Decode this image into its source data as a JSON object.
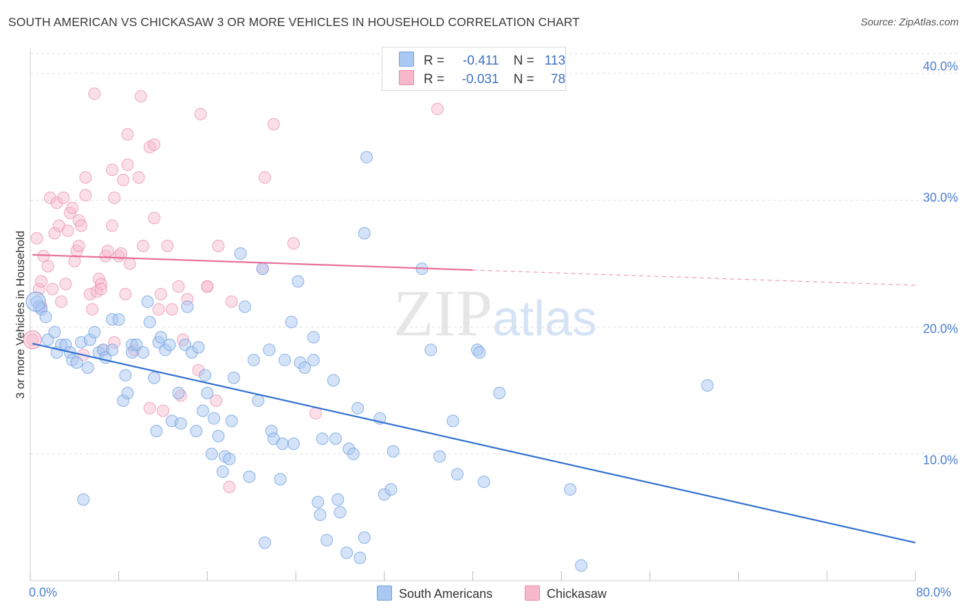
{
  "title": "SOUTH AMERICAN VS CHICKASAW 3 OR MORE VEHICLES IN HOUSEHOLD CORRELATION CHART",
  "source": "Source: ZipAtlas.com",
  "watermark": "ZIPatlas",
  "legend": {
    "rows": [
      {
        "r_label": "R =",
        "r_value": "-0.411",
        "n_label": "N =",
        "n_value": "113",
        "color": "#a9c8f2"
      },
      {
        "r_label": "R =",
        "r_value": "-0.031",
        "n_label": "N =",
        "n_value": "78",
        "color": "#f7b8cb"
      }
    ]
  },
  "bottom_legend": [
    {
      "label": "South Americans",
      "color": "#a9c8f2"
    },
    {
      "label": "Chickasaw",
      "color": "#f7b8cb"
    }
  ],
  "colors": {
    "blue_point": "#a9c8f2",
    "blue_stroke": "#6fa0e0",
    "blue_line": "#2f6fd0",
    "pink_point": "#f7b8cb",
    "pink_stroke": "#ea87a8",
    "pink_line": "#e86d96",
    "grid": "#dddddd",
    "tick_text": "#4a7fd0"
  },
  "chart_data": {
    "type": "scatter",
    "title": "SOUTH AMERICAN VS CHICKASAW 3 OR MORE VEHICLES IN HOUSEHOLD CORRELATION CHART",
    "xlabel": "",
    "ylabel": "3 or more Vehicles in Household",
    "xlim": [
      0,
      80
    ],
    "ylim": [
      0,
      42
    ],
    "x_tick_labels": [
      "0.0%",
      "80.0%"
    ],
    "y_ticks": [
      10,
      20,
      30,
      40
    ],
    "y_tick_labels": [
      "10.0%",
      "20.0%",
      "30.0%",
      "40.0%"
    ],
    "grid": true,
    "legend_position": "top-center",
    "series": [
      {
        "name": "South Americans",
        "r": -0.411,
        "n": 113,
        "trend": {
          "x0": 0.2,
          "y0": 18.7,
          "x1": 80,
          "y1": 3.0
        },
        "points": [
          [
            0.6,
            22.0
          ],
          [
            0.8,
            21.6
          ],
          [
            1.0,
            21.4
          ],
          [
            1.4,
            20.8
          ],
          [
            1.6,
            19.0
          ],
          [
            2.2,
            19.6
          ],
          [
            2.4,
            18.0
          ],
          [
            2.8,
            18.6
          ],
          [
            3.2,
            18.6
          ],
          [
            3.6,
            18.0
          ],
          [
            3.8,
            17.4
          ],
          [
            4.2,
            17.2
          ],
          [
            4.6,
            18.8
          ],
          [
            5.2,
            16.8
          ],
          [
            5.4,
            19.0
          ],
          [
            5.8,
            19.6
          ],
          [
            6.2,
            18.0
          ],
          [
            6.6,
            18.2
          ],
          [
            6.8,
            17.6
          ],
          [
            7.4,
            18.2
          ],
          [
            7.4,
            20.6
          ],
          [
            8.0,
            20.6
          ],
          [
            8.4,
            14.2
          ],
          [
            8.6,
            16.2
          ],
          [
            8.8,
            14.8
          ],
          [
            9.2,
            18.6
          ],
          [
            9.2,
            18.0
          ],
          [
            9.6,
            18.6
          ],
          [
            10.2,
            18.0
          ],
          [
            10.6,
            22.0
          ],
          [
            10.8,
            20.4
          ],
          [
            11.2,
            16.0
          ],
          [
            11.4,
            11.8
          ],
          [
            11.6,
            18.8
          ],
          [
            11.8,
            19.2
          ],
          [
            12.2,
            18.2
          ],
          [
            12.6,
            18.6
          ],
          [
            12.8,
            12.6
          ],
          [
            13.4,
            14.8
          ],
          [
            13.6,
            12.4
          ],
          [
            14.0,
            18.6
          ],
          [
            14.2,
            21.6
          ],
          [
            14.6,
            18.0
          ],
          [
            15.0,
            11.8
          ],
          [
            15.2,
            18.4
          ],
          [
            15.6,
            13.4
          ],
          [
            15.8,
            16.2
          ],
          [
            16.0,
            14.8
          ],
          [
            16.4,
            10.0
          ],
          [
            16.6,
            12.8
          ],
          [
            17.0,
            11.4
          ],
          [
            17.4,
            8.6
          ],
          [
            17.6,
            9.8
          ],
          [
            18.0,
            9.6
          ],
          [
            18.2,
            12.6
          ],
          [
            18.4,
            16.0
          ],
          [
            19.0,
            25.8
          ],
          [
            19.4,
            21.6
          ],
          [
            19.8,
            8.2
          ],
          [
            20.2,
            17.4
          ],
          [
            20.6,
            14.2
          ],
          [
            21.0,
            24.6
          ],
          [
            21.2,
            3.0
          ],
          [
            21.6,
            18.2
          ],
          [
            21.8,
            11.8
          ],
          [
            22.0,
            11.2
          ],
          [
            22.8,
            10.8
          ],
          [
            22.6,
            8.0
          ],
          [
            23.0,
            17.4
          ],
          [
            23.6,
            20.4
          ],
          [
            23.8,
            10.8
          ],
          [
            24.2,
            23.6
          ],
          [
            24.4,
            17.2
          ],
          [
            24.8,
            16.8
          ],
          [
            25.6,
            17.4
          ],
          [
            25.6,
            19.2
          ],
          [
            26.0,
            6.2
          ],
          [
            26.2,
            5.2
          ],
          [
            26.4,
            11.2
          ],
          [
            26.8,
            3.2
          ],
          [
            27.4,
            15.8
          ],
          [
            27.6,
            11.2
          ],
          [
            27.8,
            6.4
          ],
          [
            28.0,
            5.4
          ],
          [
            28.6,
            2.2
          ],
          [
            28.8,
            10.4
          ],
          [
            29.2,
            10.0
          ],
          [
            29.6,
            13.6
          ],
          [
            29.8,
            1.8
          ],
          [
            30.2,
            3.4
          ],
          [
            30.4,
            33.4
          ],
          [
            30.2,
            27.4
          ],
          [
            31.6,
            12.8
          ],
          [
            32.0,
            6.8
          ],
          [
            32.6,
            7.2
          ],
          [
            32.8,
            10.2
          ],
          [
            35.4,
            24.6
          ],
          [
            36.2,
            18.2
          ],
          [
            37.0,
            9.8
          ],
          [
            38.2,
            12.6
          ],
          [
            38.6,
            8.4
          ],
          [
            40.4,
            18.2
          ],
          [
            40.6,
            18.0
          ],
          [
            41.0,
            7.8
          ],
          [
            42.4,
            14.8
          ],
          [
            48.8,
            7.2
          ],
          [
            49.8,
            1.2
          ],
          [
            61.2,
            15.4
          ],
          [
            4.8,
            6.4
          ]
        ]
      },
      {
        "name": "Chickasaw",
        "r": -0.031,
        "n": 78,
        "trend": {
          "x0": 0.2,
          "y0": 25.7,
          "x1": 40,
          "y1": 24.5,
          "dashed_to_x": 80,
          "dashed_to_y": 23.3
        },
        "points": [
          [
            0.2,
            19.0
          ],
          [
            0.6,
            27.0
          ],
          [
            0.8,
            23.0
          ],
          [
            1.0,
            23.6
          ],
          [
            1.0,
            21.6
          ],
          [
            1.2,
            25.6
          ],
          [
            1.6,
            24.8
          ],
          [
            1.8,
            30.2
          ],
          [
            2.0,
            23.0
          ],
          [
            2.2,
            27.4
          ],
          [
            2.4,
            29.8
          ],
          [
            2.6,
            28.0
          ],
          [
            2.8,
            22.0
          ],
          [
            3.0,
            30.2
          ],
          [
            3.2,
            23.4
          ],
          [
            3.4,
            27.6
          ],
          [
            3.6,
            29.0
          ],
          [
            3.8,
            29.4
          ],
          [
            4.0,
            25.2
          ],
          [
            4.2,
            26.0
          ],
          [
            4.4,
            26.4
          ],
          [
            4.4,
            28.4
          ],
          [
            4.6,
            28.0
          ],
          [
            4.8,
            17.8
          ],
          [
            5.0,
            30.4
          ],
          [
            5.0,
            31.8
          ],
          [
            5.4,
            22.6
          ],
          [
            5.6,
            21.4
          ],
          [
            5.8,
            38.4
          ],
          [
            6.0,
            22.8
          ],
          [
            6.2,
            23.8
          ],
          [
            6.4,
            23.4
          ],
          [
            6.6,
            18.2
          ],
          [
            6.8,
            25.6
          ],
          [
            7.0,
            26.0
          ],
          [
            7.4,
            28.0
          ],
          [
            7.4,
            32.4
          ],
          [
            7.6,
            30.2
          ],
          [
            7.6,
            18.8
          ],
          [
            8.0,
            25.6
          ],
          [
            8.2,
            25.8
          ],
          [
            8.4,
            31.6
          ],
          [
            8.6,
            22.6
          ],
          [
            8.8,
            32.8
          ],
          [
            8.8,
            35.2
          ],
          [
            9.0,
            25.0
          ],
          [
            9.4,
            18.2
          ],
          [
            9.8,
            31.8
          ],
          [
            10.0,
            38.2
          ],
          [
            10.2,
            26.4
          ],
          [
            10.8,
            34.2
          ],
          [
            10.8,
            13.6
          ],
          [
            11.2,
            34.4
          ],
          [
            11.2,
            28.6
          ],
          [
            11.6,
            21.4
          ],
          [
            11.8,
            22.6
          ],
          [
            12.0,
            13.4
          ],
          [
            12.4,
            26.4
          ],
          [
            12.8,
            21.4
          ],
          [
            13.4,
            23.2
          ],
          [
            13.6,
            14.6
          ],
          [
            13.8,
            19.0
          ],
          [
            14.2,
            22.2
          ],
          [
            15.2,
            16.6
          ],
          [
            15.4,
            36.8
          ],
          [
            16.0,
            23.2
          ],
          [
            16.8,
            14.2
          ],
          [
            17.0,
            26.4
          ],
          [
            18.0,
            7.4
          ],
          [
            18.2,
            22.0
          ],
          [
            21.0,
            24.6
          ],
          [
            21.2,
            31.8
          ],
          [
            22.0,
            36.0
          ],
          [
            23.8,
            26.6
          ],
          [
            25.8,
            13.2
          ],
          [
            36.8,
            37.2
          ],
          [
            16.0,
            23.2
          ],
          [
            6.4,
            23.0
          ]
        ]
      }
    ]
  }
}
